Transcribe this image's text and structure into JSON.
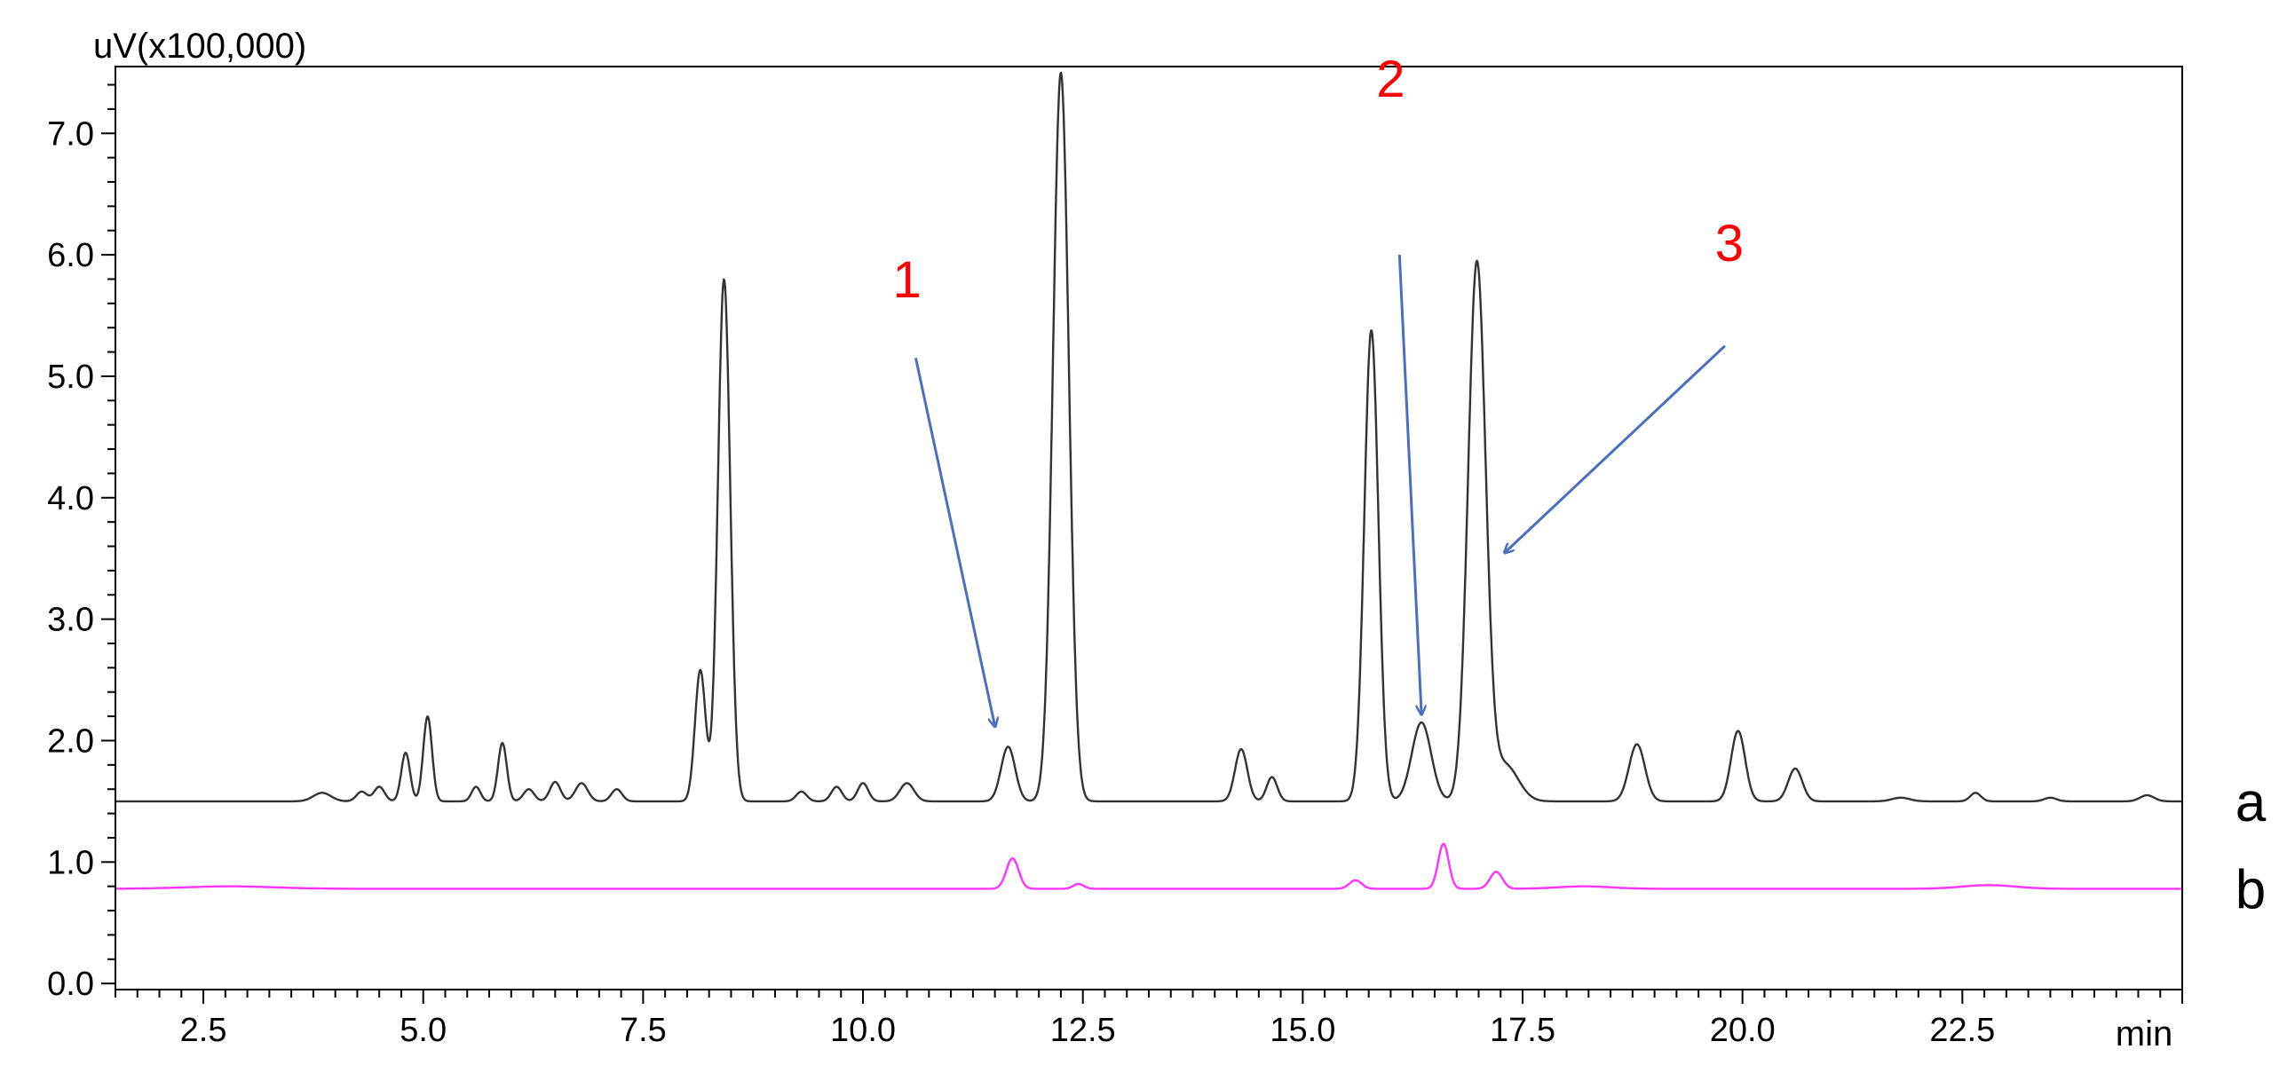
{
  "chart_data": {
    "type": "line",
    "y_unit_label": "uV(x100,000)",
    "x_unit_label": "min",
    "xlim": [
      1.5,
      25.0
    ],
    "ylim": [
      -0.05,
      7.55
    ],
    "x_ticks": [
      2.5,
      5.0,
      7.5,
      10.0,
      12.5,
      15.0,
      17.5,
      20.0,
      22.5
    ],
    "x_tick_labels": [
      "2.5",
      "5.0",
      "7.5",
      "10.0",
      "12.5",
      "15.0",
      "17.5",
      "20.0",
      "22.5"
    ],
    "y_ticks": [
      0.0,
      1.0,
      2.0,
      3.0,
      4.0,
      5.0,
      6.0,
      7.0
    ],
    "y_tick_labels": [
      "0.0",
      "1.0",
      "2.0",
      "3.0",
      "4.0",
      "5.0",
      "6.0",
      "7.0"
    ],
    "x_minor_step": 0.25,
    "y_minor_step": 0.2,
    "grid": false,
    "series": [
      {
        "name": "a",
        "color": "#333333",
        "baseline": 1.5,
        "peaks": [
          [
            3.85,
            0.07,
            0.1
          ],
          [
            4.3,
            0.08,
            0.06
          ],
          [
            4.5,
            0.12,
            0.06
          ],
          [
            4.8,
            0.4,
            0.05
          ],
          [
            5.05,
            0.7,
            0.05
          ],
          [
            5.6,
            0.12,
            0.05
          ],
          [
            5.9,
            0.48,
            0.05
          ],
          [
            6.2,
            0.1,
            0.06
          ],
          [
            6.5,
            0.16,
            0.06
          ],
          [
            6.8,
            0.15,
            0.07
          ],
          [
            7.2,
            0.1,
            0.06
          ],
          [
            8.15,
            1.08,
            0.06
          ],
          [
            8.42,
            4.3,
            0.07
          ],
          [
            9.3,
            0.08,
            0.06
          ],
          [
            9.7,
            0.12,
            0.06
          ],
          [
            10.0,
            0.15,
            0.06
          ],
          [
            10.5,
            0.15,
            0.08
          ],
          [
            11.65,
            0.45,
            0.08
          ],
          [
            12.25,
            6.0,
            0.09
          ],
          [
            14.3,
            0.43,
            0.07
          ],
          [
            14.65,
            0.2,
            0.06
          ],
          [
            15.78,
            3.88,
            0.08
          ],
          [
            16.35,
            0.65,
            0.11
          ],
          [
            16.98,
            4.42,
            0.1
          ],
          [
            17.3,
            0.3,
            0.15
          ],
          [
            18.8,
            0.47,
            0.09
          ],
          [
            19.95,
            0.58,
            0.08
          ],
          [
            20.6,
            0.27,
            0.08
          ],
          [
            21.8,
            0.03,
            0.1
          ],
          [
            22.65,
            0.07,
            0.06
          ],
          [
            23.5,
            0.03,
            0.07
          ],
          [
            24.6,
            0.05,
            0.08
          ]
        ]
      },
      {
        "name": "b",
        "color": "#ff33ff",
        "baseline": 0.78,
        "peaks": [
          [
            2.8,
            0.02,
            0.5
          ],
          [
            11.7,
            0.25,
            0.07
          ],
          [
            12.45,
            0.04,
            0.06
          ],
          [
            15.6,
            0.07,
            0.07
          ],
          [
            16.6,
            0.37,
            0.06
          ],
          [
            17.2,
            0.14,
            0.07
          ],
          [
            18.2,
            0.02,
            0.3
          ],
          [
            22.8,
            0.03,
            0.3
          ]
        ]
      }
    ],
    "trace_labels": [
      {
        "text": "a",
        "y": 1.5
      },
      {
        "text": "b",
        "y": 0.78
      }
    ],
    "annotations": [
      {
        "text": "1",
        "color": "#ff0000",
        "text_xy": [
          10.5,
          5.65
        ],
        "arrow_from": [
          10.6,
          5.15
        ],
        "arrow_to": [
          11.5,
          2.12
        ]
      },
      {
        "text": "2",
        "color": "#ff0000",
        "text_xy": [
          16.0,
          7.3
        ],
        "arrow_from": [
          16.1,
          6.0
        ],
        "arrow_to": [
          16.35,
          2.22
        ]
      },
      {
        "text": "3",
        "color": "#ff0000",
        "text_xy": [
          19.85,
          5.95
        ],
        "arrow_from": [
          19.8,
          5.25
        ],
        "arrow_to": [
          17.3,
          3.55
        ]
      }
    ],
    "arrow_color": "#4a6fbd"
  }
}
